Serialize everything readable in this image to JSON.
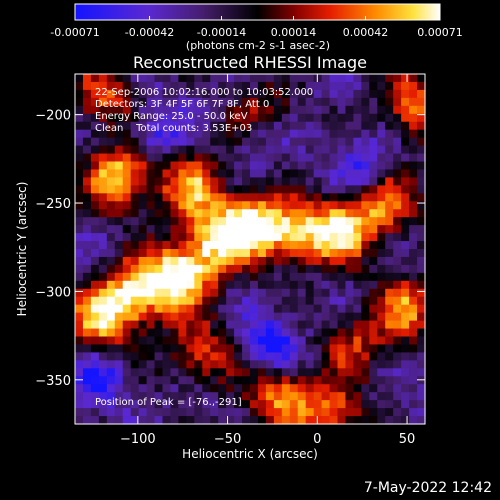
{
  "colors": {
    "background": "#000000",
    "text": "#ffffff"
  },
  "colorbar": {
    "tick_labels": [
      "-0.00071",
      "-0.00042",
      "-0.00014",
      "0.00014",
      "0.00042",
      "0.00071"
    ],
    "unit_label": "(photons cm-2 s-1 asec-2)",
    "range": [
      -0.00071,
      0.00071
    ],
    "colormap": "blue-purple-black-red-orange-yellow-white"
  },
  "stamp": "7-May-2022 12:42",
  "chart_data": {
    "type": "heatmap",
    "title": "Reconstructed RHESSI Image",
    "xlabel": "Heliocentric X (arcsec)",
    "ylabel": "Heliocentric Y (arcsec)",
    "xlim": [
      -135,
      60
    ],
    "ylim": [
      -375,
      -177
    ],
    "x_ticks": [
      -100,
      -50,
      0,
      50
    ],
    "y_ticks": [
      -200,
      -250,
      -300,
      -350
    ],
    "x_tick_labels": [
      "−100",
      "−50",
      "0",
      "50"
    ],
    "y_tick_labels": [
      "−200",
      "−250",
      "−300",
      "−350"
    ],
    "annotations": {
      "time": "22-Sep-2006 10:02:16.000 to 10:03:52.000",
      "detectors": "Detectors: 3F 4F 5F 6F 7F 8F, Att 0",
      "energy": "Energy Range: 25.0 - 50.0 keV",
      "clean": "Clean    Total counts: 3.53E+03",
      "peak": "Position of Peak = [-76.,-291]"
    },
    "peak": {
      "x": -76,
      "y": -291
    },
    "bright_regions": [
      {
        "x": -110,
        "y": -236,
        "intensity": 0.9
      },
      {
        "x": -70,
        "y": -240,
        "intensity": 0.7
      },
      {
        "x": -55,
        "y": -270,
        "intensity": 0.8
      },
      {
        "x": -35,
        "y": -262,
        "intensity": 0.9
      },
      {
        "x": -10,
        "y": -268,
        "intensity": 0.7
      },
      {
        "x": 15,
        "y": -265,
        "intensity": 0.85
      },
      {
        "x": 40,
        "y": -250,
        "intensity": 0.6
      },
      {
        "x": -76,
        "y": -291,
        "intensity": 1.0
      },
      {
        "x": -100,
        "y": -300,
        "intensity": 0.85
      },
      {
        "x": -120,
        "y": -315,
        "intensity": 0.8
      },
      {
        "x": -65,
        "y": -335,
        "intensity": 0.6
      },
      {
        "x": -20,
        "y": -360,
        "intensity": 0.75
      },
      {
        "x": 50,
        "y": -310,
        "intensity": 0.7
      },
      {
        "x": 55,
        "y": -195,
        "intensity": 0.75
      },
      {
        "x": 20,
        "y": -330,
        "intensity": 0.5
      },
      {
        "x": -120,
        "y": -190,
        "intensity": 0.6
      },
      {
        "x": -30,
        "y": -200,
        "intensity": 0.5
      },
      {
        "x": 10,
        "y": -370,
        "intensity": 0.6
      }
    ],
    "dark_regions": [
      {
        "x": -25,
        "y": -330,
        "depth": 0.9
      },
      {
        "x": -90,
        "y": -210,
        "depth": 0.6
      },
      {
        "x": -120,
        "y": -350,
        "depth": 0.6
      },
      {
        "x": 25,
        "y": -230,
        "depth": 0.6
      },
      {
        "x": -30,
        "y": -210,
        "depth": 0.5
      }
    ]
  }
}
